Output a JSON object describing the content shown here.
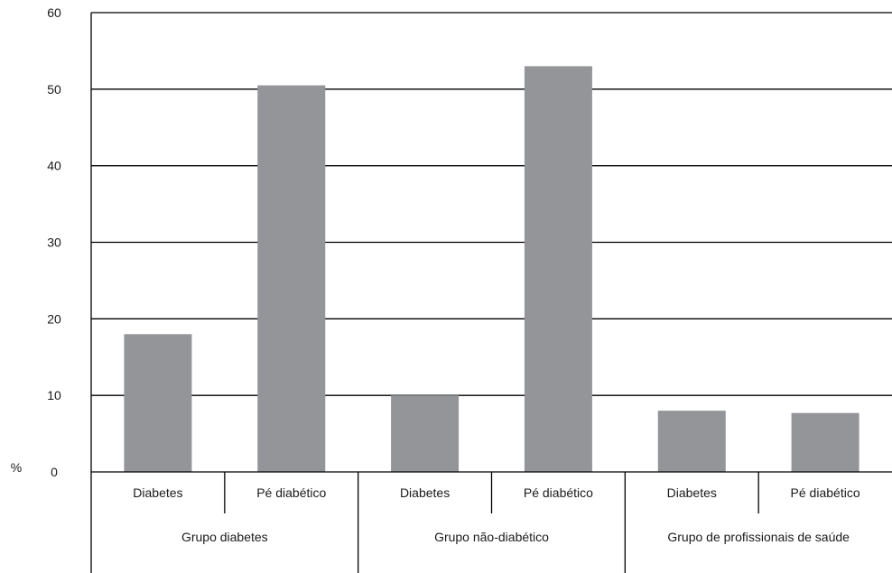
{
  "chart_data": {
    "type": "bar",
    "unit_label": "%",
    "ylim": [
      0,
      60
    ],
    "yticks": [
      0,
      10,
      20,
      30,
      40,
      50,
      60
    ],
    "grid": true,
    "bar_color": "#939598",
    "groups": [
      {
        "label": "Grupo diabetes",
        "categories": [
          "Diabetes",
          "Pé diabético"
        ],
        "values": [
          18,
          50.5
        ]
      },
      {
        "label": "Grupo não-diabético",
        "categories": [
          "Diabetes",
          "Pé diabético"
        ],
        "values": [
          10,
          53
        ]
      },
      {
        "label": "Grupo de profissionais de saúde",
        "categories": [
          "Diabetes",
          "Pé diabético"
        ],
        "values": [
          8,
          7.7
        ]
      }
    ]
  }
}
